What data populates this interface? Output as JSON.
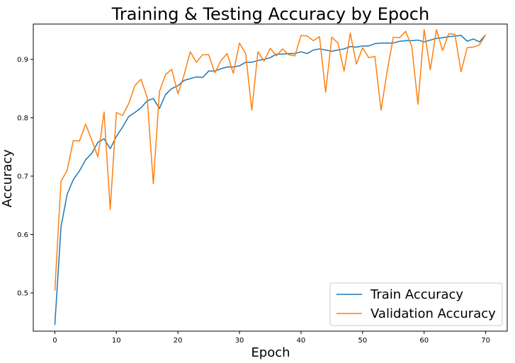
{
  "chart_data": {
    "type": "line",
    "title": "Training & Testing Accuracy by Epoch",
    "xlabel": "Epoch",
    "ylabel": "Accuracy",
    "xlim": [
      -3.5,
      73.5
    ],
    "ylim": [
      0.4345,
      0.9605
    ],
    "xticks": [
      0,
      10,
      20,
      30,
      40,
      50,
      60,
      70
    ],
    "yticks": [
      0.5,
      0.6,
      0.7,
      0.8,
      0.9
    ],
    "ytick_labels": [
      "0.5",
      "0.6",
      "0.7",
      "0.8",
      "0.9"
    ],
    "grid": false,
    "legend_position": "bottom-right",
    "x": [
      0,
      1,
      2,
      3,
      4,
      5,
      6,
      7,
      8,
      9,
      10,
      11,
      12,
      13,
      14,
      15,
      16,
      17,
      18,
      19,
      20,
      21,
      22,
      23,
      24,
      25,
      26,
      27,
      28,
      29,
      30,
      31,
      32,
      33,
      34,
      35,
      36,
      37,
      38,
      39,
      40,
      41,
      42,
      43,
      44,
      45,
      46,
      47,
      48,
      49,
      50,
      51,
      52,
      53,
      54,
      55,
      56,
      57,
      58,
      59,
      60,
      61,
      62,
      63,
      64,
      65,
      66,
      67,
      68,
      69,
      70
    ],
    "series": [
      {
        "name": "Train Accuracy",
        "color": "#1f77b4",
        "values": [
          0.445,
          0.613,
          0.669,
          0.694,
          0.709,
          0.728,
          0.739,
          0.758,
          0.764,
          0.747,
          0.768,
          0.784,
          0.802,
          0.809,
          0.817,
          0.829,
          0.833,
          0.816,
          0.84,
          0.85,
          0.855,
          0.864,
          0.867,
          0.87,
          0.869,
          0.88,
          0.88,
          0.884,
          0.887,
          0.887,
          0.889,
          0.895,
          0.895,
          0.898,
          0.9,
          0.903,
          0.909,
          0.909,
          0.91,
          0.91,
          0.913,
          0.91,
          0.916,
          0.918,
          0.916,
          0.914,
          0.916,
          0.918,
          0.922,
          0.921,
          0.923,
          0.923,
          0.927,
          0.928,
          0.928,
          0.928,
          0.931,
          0.932,
          0.932,
          0.933,
          0.93,
          0.933,
          0.936,
          0.937,
          0.939,
          0.94,
          0.941,
          0.931,
          0.935,
          0.93,
          0.942
        ]
      },
      {
        "name": "Validation Accuracy",
        "color": "#ff7f0e",
        "values": [
          0.504,
          0.691,
          0.71,
          0.761,
          0.76,
          0.789,
          0.762,
          0.733,
          0.81,
          0.643,
          0.809,
          0.804,
          0.824,
          0.855,
          0.866,
          0.835,
          0.687,
          0.845,
          0.874,
          0.883,
          0.841,
          0.873,
          0.913,
          0.895,
          0.908,
          0.908,
          0.877,
          0.898,
          0.91,
          0.876,
          0.928,
          0.91,
          0.813,
          0.913,
          0.897,
          0.919,
          0.906,
          0.918,
          0.908,
          0.906,
          0.941,
          0.94,
          0.932,
          0.939,
          0.844,
          0.938,
          0.928,
          0.88,
          0.945,
          0.892,
          0.92,
          0.903,
          0.905,
          0.813,
          0.88,
          0.938,
          0.937,
          0.948,
          0.922,
          0.823,
          0.951,
          0.882,
          0.951,
          0.915,
          0.944,
          0.943,
          0.879,
          0.92,
          0.921,
          0.925,
          0.942
        ]
      }
    ]
  }
}
